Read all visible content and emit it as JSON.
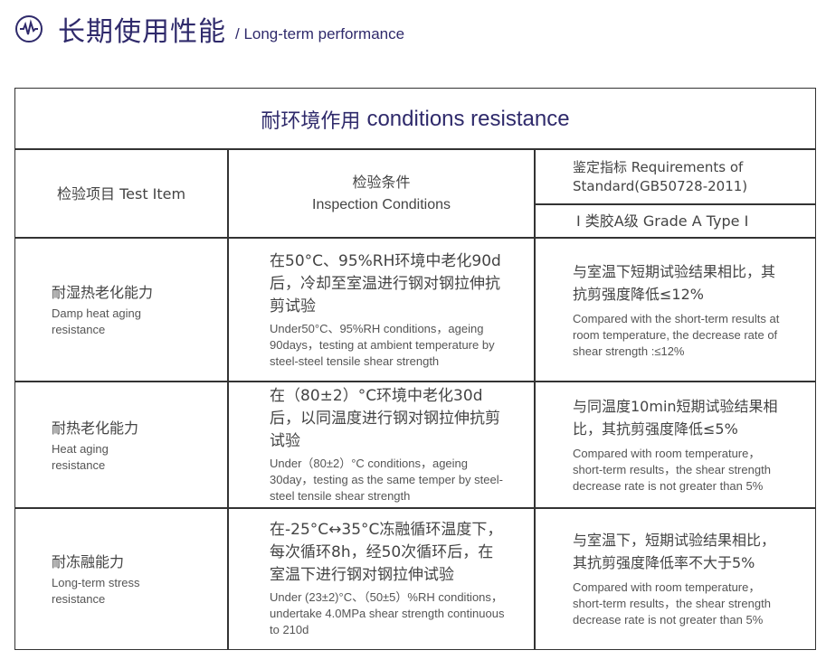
{
  "header": {
    "title": "长期使用性能",
    "subtitle": "/ Long-term performance",
    "icon": "pulse-icon",
    "color": "#2f2a6b"
  },
  "table": {
    "title_cn": "耐环境作用",
    "title_en": "conditions resistance",
    "col1": "检验项目 Test Item",
    "col2_cn": "检验条件",
    "col2_en": "Inspection Conditions",
    "col3_cn": "鉴定指标 Requirements of Standard(GB50728-2011)",
    "col3_sub": "Ⅰ 类胶A级  Grade A Type Ⅰ",
    "rows": [
      {
        "item_cn": "耐湿热老化能力",
        "item_en": "Damp heat aging resistance",
        "cond_cn": "在50°C、95%RH环境中老化90d后，冷却至室温进行钢对钢拉伸抗剪试验",
        "cond_en": "Under50°C、95%RH conditions，ageing 90days，testing at ambient temperature by steel-steel tensile shear strength",
        "req_cn": "与室温下短期试验结果相比，其抗剪强度降低≤12%",
        "req_en": "Compared with the short-term results at room temperature, the decrease rate of shear strength :≤12%"
      },
      {
        "item_cn": "耐热老化能力",
        "item_en": "Heat aging resistance",
        "cond_cn": "在（80±2）°C环境中老化30d后，以同温度进行钢对钢拉伸抗剪试验",
        "cond_en": "Under（80±2）°C conditions，ageing 30day，testing as the same temper by steel-steel tensile shear strength",
        "req_cn": "与同温度10min短期试验结果相比，其抗剪强度降低≤5%",
        "req_en": "Compared with room temperature，short-term results，the shear strength decrease rate is not greater than 5%"
      },
      {
        "item_cn": "耐冻融能力",
        "item_en": "Long-term stress resistance",
        "cond_cn": "在-25°C↔35°C冻融循环温度下，每次循环8h，经50次循环后，在室温下进行钢对钢拉伸试验",
        "cond_en": "Under (23±2)°C、（50±5）%RH conditions，undertake 4.0MPa shear strength continuous to 210d",
        "req_cn": "与室温下，短期试验结果相比，其抗剪强度降低率不大于5%",
        "req_en": "Compared with room temperature，short-term results，the shear strength decrease rate is not greater than 5%"
      }
    ]
  }
}
